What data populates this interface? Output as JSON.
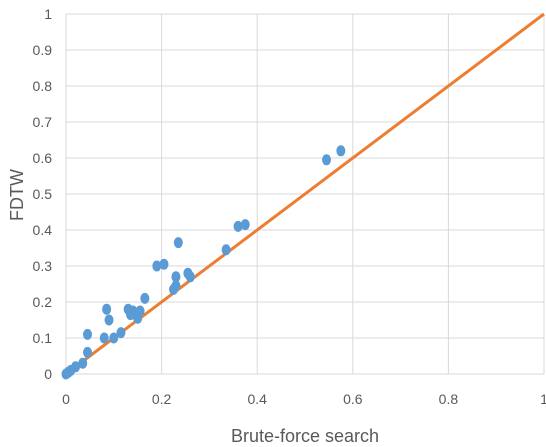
{
  "chart_data": {
    "type": "scatter",
    "xlabel": "Brute-force search",
    "ylabel": "FDTW",
    "xlim": [
      0,
      1
    ],
    "ylim": [
      0,
      1
    ],
    "x_ticks": [
      "0",
      "0.2",
      "0.4",
      "0.6",
      "0.8",
      "1"
    ],
    "x_tick_values": [
      0,
      0.2,
      0.4,
      0.6,
      0.8,
      1
    ],
    "y_ticks": [
      "0",
      "0.1",
      "0.2",
      "0.3",
      "0.4",
      "0.5",
      "0.6",
      "0.7",
      "0.8",
      "0.9",
      "1"
    ],
    "y_tick_values": [
      0,
      0.1,
      0.2,
      0.3,
      0.4,
      0.5,
      0.6,
      0.7,
      0.8,
      0.9,
      1
    ],
    "grid": "vertical-and-horizontal",
    "reference_line": {
      "x": [
        0,
        1
      ],
      "y": [
        0,
        1
      ],
      "color": "#ED7D31"
    },
    "point_color": "#5B9BD5",
    "points": [
      {
        "x": 0.0,
        "y": 0.0
      },
      {
        "x": 0.005,
        "y": 0.005
      },
      {
        "x": 0.01,
        "y": 0.01
      },
      {
        "x": 0.02,
        "y": 0.02
      },
      {
        "x": 0.035,
        "y": 0.03
      },
      {
        "x": 0.045,
        "y": 0.06
      },
      {
        "x": 0.045,
        "y": 0.11
      },
      {
        "x": 0.08,
        "y": 0.1
      },
      {
        "x": 0.085,
        "y": 0.18
      },
      {
        "x": 0.09,
        "y": 0.15
      },
      {
        "x": 0.1,
        "y": 0.1
      },
      {
        "x": 0.115,
        "y": 0.115
      },
      {
        "x": 0.13,
        "y": 0.18
      },
      {
        "x": 0.135,
        "y": 0.165
      },
      {
        "x": 0.14,
        "y": 0.175
      },
      {
        "x": 0.15,
        "y": 0.155
      },
      {
        "x": 0.155,
        "y": 0.175
      },
      {
        "x": 0.165,
        "y": 0.21
      },
      {
        "x": 0.19,
        "y": 0.3
      },
      {
        "x": 0.205,
        "y": 0.305
      },
      {
        "x": 0.225,
        "y": 0.235
      },
      {
        "x": 0.23,
        "y": 0.27
      },
      {
        "x": 0.23,
        "y": 0.245
      },
      {
        "x": 0.235,
        "y": 0.365
      },
      {
        "x": 0.255,
        "y": 0.28
      },
      {
        "x": 0.26,
        "y": 0.27
      },
      {
        "x": 0.335,
        "y": 0.345
      },
      {
        "x": 0.36,
        "y": 0.41
      },
      {
        "x": 0.375,
        "y": 0.415
      },
      {
        "x": 0.545,
        "y": 0.595
      },
      {
        "x": 0.575,
        "y": 0.62
      }
    ]
  }
}
